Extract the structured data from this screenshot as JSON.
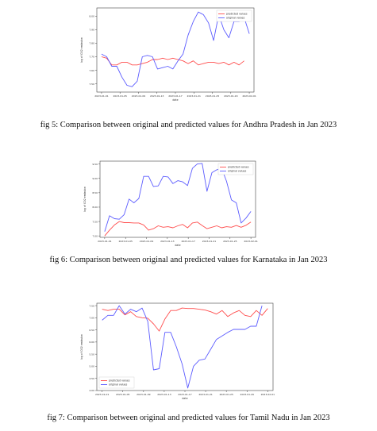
{
  "figures": [
    {
      "caption": "fig 5: Comparison between original and predicted values for Andhra Pradesh in Jan 2023",
      "chart_data": {
        "type": "line",
        "title": "",
        "xlabel": "date",
        "ylabel": "log of CO2 emission",
        "x_ticks": [
          "2023-01-01",
          "2023-01-05",
          "2023-01-09",
          "2023-01-13",
          "2023-01-17",
          "2023-01-21",
          "2023-01-25",
          "2023-01-29",
          "2023-02-01"
        ],
        "y_ticks": [
          "7.50",
          "7.60",
          "7.70",
          "7.80",
          "7.90",
          "8.00"
        ],
        "ylim": [
          7.44,
          8.06
        ],
        "legend": "top-right",
        "series": [
          {
            "name": "predicted values",
            "color": "#ff4d4d",
            "values": [
              7.7,
              7.69,
              7.64,
              7.64,
              7.66,
              7.66,
              7.64,
              7.64,
              7.65,
              7.66,
              7.68,
              7.68,
              7.69,
              7.68,
              7.69,
              7.68,
              7.67,
              7.65,
              7.67,
              7.64,
              7.65,
              7.66,
              7.66,
              7.65,
              7.66,
              7.64,
              7.66,
              7.64,
              7.67
            ]
          },
          {
            "name": "original values",
            "color": "#5c5cff",
            "values": [
              7.72,
              7.7,
              7.63,
              7.63,
              7.55,
              7.49,
              7.48,
              7.52,
              7.7,
              7.71,
              7.7,
              7.61,
              7.62,
              7.63,
              7.61,
              7.67,
              7.72,
              7.86,
              7.96,
              8.03,
              8.01,
              7.95,
              7.82,
              8.01,
              7.9,
              7.84,
              7.96,
              7.96,
              7.99,
              7.87
            ]
          }
        ]
      }
    },
    {
      "caption": "fig 6: Comparison between original and predicted values for Karnataka in Jan 2023",
      "chart_data": {
        "type": "line",
        "title": "",
        "xlabel": "date",
        "ylabel": "log of CO2 emission",
        "x_ticks": [
          "2023-01-01",
          "2023-01-05",
          "2023-01-09",
          "2023-01-13",
          "2023-01-17",
          "2023-01-21",
          "2023-01-25",
          "2023-02-01"
        ],
        "y_ticks": [
          "7.00",
          "7.50",
          "8.00",
          "8.50",
          "9.00",
          "9.50"
        ],
        "ylim": [
          6.95,
          9.6
        ],
        "legend": "top-right",
        "series": [
          {
            "name": "predicted values",
            "color": "#ff4d4d",
            "values": [
              7.0,
              7.2,
              7.38,
              7.5,
              7.46,
              7.46,
              7.45,
              7.45,
              7.38,
              7.2,
              7.25,
              7.35,
              7.3,
              7.32,
              7.28,
              7.35,
              7.4,
              7.28,
              7.45,
              7.48,
              7.36,
              7.25,
              7.3,
              7.35,
              7.28,
              7.32,
              7.3,
              7.36,
              7.3,
              7.37,
              7.48
            ]
          },
          {
            "name": "original values",
            "color": "#5c5cff",
            "values": [
              7.15,
              7.7,
              7.6,
              7.58,
              7.74,
              8.28,
              8.15,
              8.3,
              9.07,
              9.07,
              8.72,
              8.74,
              9.07,
              9.05,
              8.82,
              8.92,
              8.88,
              8.75,
              9.35,
              9.5,
              9.52,
              8.55,
              9.2,
              9.3,
              9.35,
              8.9,
              8.25,
              8.15,
              7.45,
              7.62,
              7.85
            ]
          }
        ]
      }
    },
    {
      "caption": "fig 7: Comparison between original and predicted values for Tamil Nadu in Jan 2023",
      "chart_data": {
        "type": "line",
        "title": "",
        "xlabel": "date",
        "ylabel": "log of CO2 emission",
        "x_ticks": [
          "2023-01-01",
          "2023-01-05",
          "2023-01-09",
          "2023-01-13",
          "2023-01-17",
          "2023-01-21",
          "2023-01-25",
          "2023-01-29",
          "2023-02-01"
        ],
        "y_ticks": [
          "4.00",
          "4.50",
          "5.00",
          "5.50",
          "6.00",
          "6.50",
          "7.00",
          "7.50"
        ],
        "ylim": [
          4.0,
          7.6
        ],
        "legend": "bottom-left",
        "series": [
          {
            "name": "predicted values",
            "color": "#ff4d4d",
            "values": [
              7.35,
              7.3,
              7.35,
              7.35,
              7.12,
              7.25,
              7.05,
              7.0,
              6.98,
              6.75,
              6.45,
              6.95,
              7.3,
              7.3,
              7.4,
              7.38,
              7.38,
              7.35,
              7.32,
              7.25,
              7.15,
              7.3,
              7.05,
              7.2,
              7.3,
              7.1,
              7.05,
              7.3,
              7.1,
              7.38
            ]
          },
          {
            "name": "original values",
            "color": "#5c5cff",
            "values": [
              6.9,
              7.1,
              7.1,
              7.5,
              7.15,
              7.35,
              7.25,
              7.4,
              6.85,
              4.85,
              4.9,
              6.4,
              6.4,
              5.8,
              5.1,
              4.1,
              5.0,
              5.25,
              5.3,
              5.7,
              6.1,
              6.25,
              6.4,
              6.52,
              6.52,
              6.52,
              6.65,
              6.65,
              7.5
            ]
          }
        ]
      }
    }
  ]
}
